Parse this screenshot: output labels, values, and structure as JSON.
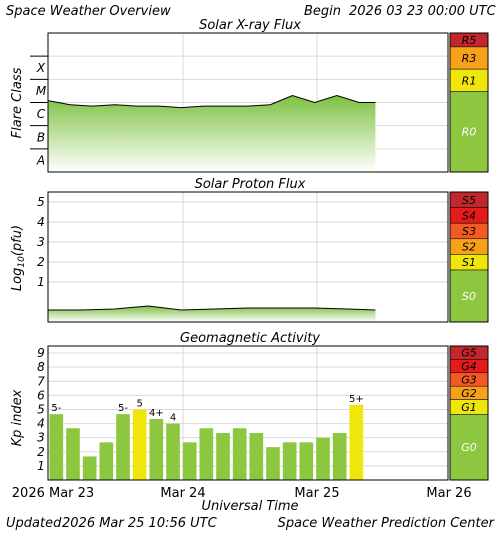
{
  "header": {
    "title": "Space Weather Overview",
    "begin_label": "Begin",
    "begin_date": "2026 03 23 00:00 UTC"
  },
  "footer": {
    "updated_label": "Updated",
    "updated_date": "2026 Mar 25 10:56 UTC",
    "center": "Space Weather Prediction Center"
  },
  "xaxis": {
    "label": "Universal Time",
    "ticks": [
      "2026 Mar 23",
      "Mar 24",
      "Mar 25",
      "Mar 26"
    ]
  },
  "colors": {
    "green": "#8dc63f",
    "yellow": "#f0e60c",
    "light_orange": "#f7a11a",
    "orange": "#f15a24",
    "red": "#e41b1b",
    "dark_red": "#c1272d",
    "grid": "#d9d9d9"
  },
  "chart_data": [
    {
      "type": "area",
      "title": "Solar X-ray Flux",
      "ylabel": "Flare Class",
      "y_scale": "log",
      "class_labels": [
        "X",
        "M",
        "C",
        "B",
        "A"
      ],
      "scales": [
        {
          "label": "R5",
          "color": "#c1272d"
        },
        {
          "label": "R3",
          "color": "#f7a11a"
        },
        {
          "label": "R1",
          "color": "#f0e60c"
        },
        {
          "label": "R0",
          "color": "#8dc63f"
        }
      ],
      "x": [
        "Mar 23 00:00",
        "Mar 23 04:00",
        "Mar 23 08:00",
        "Mar 23 12:00",
        "Mar 23 16:00",
        "Mar 23 20:00",
        "Mar 24 00:00",
        "Mar 24 04:00",
        "Mar 24 08:00",
        "Mar 24 12:00",
        "Mar 24 16:00",
        "Mar 24 20:00",
        "Mar 25 00:00",
        "Mar 25 04:00",
        "Mar 25 08:00",
        "Mar 25 10:56"
      ],
      "values": [
        "C1.2",
        "B8",
        "B7",
        "B8",
        "B7",
        "B7",
        "B6",
        "B7",
        "B7",
        "B7",
        "B8",
        "C2",
        "C1",
        "C2",
        "C1",
        "C1"
      ]
    },
    {
      "type": "area",
      "title": "Solar Proton Flux",
      "ylabel": "Log10(pfu)",
      "ylim": [
        0,
        5.5
      ],
      "yticks": [
        "1",
        "2",
        "3",
        "4",
        "5"
      ],
      "scales": [
        {
          "label": "S5",
          "color": "#c1272d"
        },
        {
          "label": "S4",
          "color": "#e41b1b"
        },
        {
          "label": "S3",
          "color": "#f15a24"
        },
        {
          "label": "S2",
          "color": "#f7a11a"
        },
        {
          "label": "S1",
          "color": "#f0e60c"
        },
        {
          "label": "S0",
          "color": "#8dc63f"
        }
      ],
      "x": [
        "Mar 23 00:00",
        "Mar 23 06:00",
        "Mar 23 12:00",
        "Mar 23 18:00",
        "Mar 24 00:00",
        "Mar 24 06:00",
        "Mar 24 12:00",
        "Mar 24 18:00",
        "Mar 25 00:00",
        "Mar 25 06:00",
        "Mar 25 10:56"
      ],
      "values": [
        -0.4,
        -0.4,
        -0.35,
        -0.2,
        -0.4,
        -0.35,
        -0.3,
        -0.3,
        -0.3,
        -0.35,
        -0.4
      ]
    },
    {
      "type": "bar",
      "title": "Geomagnetic Activity",
      "ylabel": "Kp index",
      "ylim": [
        0,
        9.5
      ],
      "yticks": [
        "1",
        "2",
        "3",
        "4",
        "5",
        "6",
        "7",
        "8",
        "9"
      ],
      "scales": [
        {
          "label": "G5",
          "color": "#c1272d"
        },
        {
          "label": "G4",
          "color": "#e41b1b"
        },
        {
          "label": "G3",
          "color": "#f15a24"
        },
        {
          "label": "G2",
          "color": "#f7a11a"
        },
        {
          "label": "G1",
          "color": "#f0e60c"
        },
        {
          "label": "G0",
          "color": "#8dc63f"
        }
      ],
      "categories": [
        "Mar 23 00",
        "Mar 23 03",
        "Mar 23 06",
        "Mar 23 09",
        "Mar 23 12",
        "Mar 23 15",
        "Mar 23 18",
        "Mar 23 21",
        "Mar 24 00",
        "Mar 24 03",
        "Mar 24 06",
        "Mar 24 09",
        "Mar 24 12",
        "Mar 24 15",
        "Mar 24 18",
        "Mar 24 21",
        "Mar 25 00",
        "Mar 25 03",
        "Mar 25 06"
      ],
      "values": [
        4.67,
        3.67,
        1.67,
        2.67,
        4.67,
        5.0,
        4.33,
        4.0,
        2.67,
        3.67,
        3.33,
        3.67,
        3.33,
        2.33,
        2.67,
        2.67,
        3.0,
        3.33,
        5.33
      ],
      "bar_labels": [
        "5-",
        "",
        "",
        "",
        "5-",
        "5",
        "4+",
        "4",
        "",
        "",
        "",
        "",
        "",
        "",
        "",
        "",
        "",
        "",
        "5+"
      ],
      "bar_colors": [
        "#8dc63f",
        "#8dc63f",
        "#8dc63f",
        "#8dc63f",
        "#8dc63f",
        "#f0e60c",
        "#8dc63f",
        "#8dc63f",
        "#8dc63f",
        "#8dc63f",
        "#8dc63f",
        "#8dc63f",
        "#8dc63f",
        "#8dc63f",
        "#8dc63f",
        "#8dc63f",
        "#8dc63f",
        "#8dc63f",
        "#f0e60c"
      ]
    }
  ]
}
